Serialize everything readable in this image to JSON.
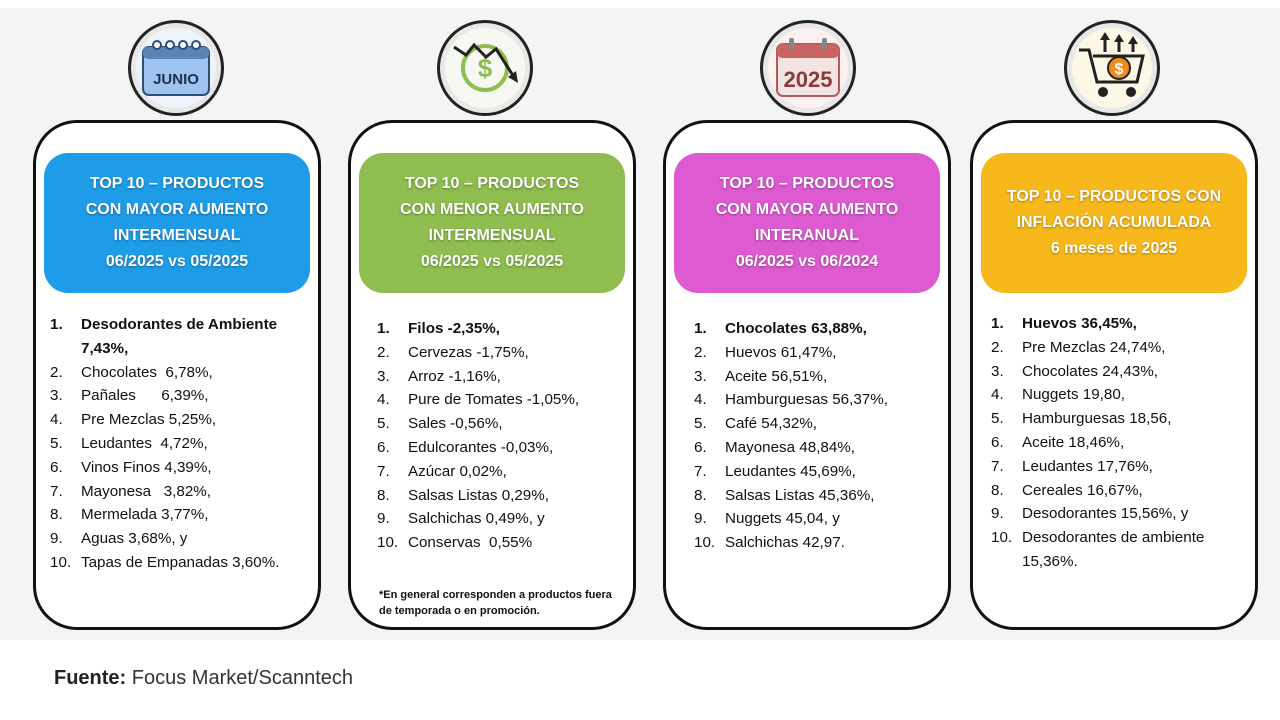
{
  "source": {
    "label": "Fuente:",
    "text": "Focus Market/Scanntech"
  },
  "cards": [
    {
      "icon_text": "JUNIO",
      "header": [
        "TOP 10 – PRODUCTOS",
        "CON MAYOR AUMENTO",
        "INTERMENSUAL",
        "06/2025 vs  05/2025"
      ],
      "color": "#1e9ce8",
      "items": [
        {
          "n": "1.",
          "t": "Desodorantes de Ambiente 7,43%,"
        },
        {
          "n": "2.",
          "t": "Chocolates  6,78%,"
        },
        {
          "n": "3.",
          "t": "Pañales      6,39%,"
        },
        {
          "n": "4.",
          "t": "Pre Mezclas 5,25%,"
        },
        {
          "n": "5.",
          "t": "Leudantes  4,72%,"
        },
        {
          "n": "6.",
          "t": "Vinos Finos 4,39%,"
        },
        {
          "n": "7.",
          "t": "Mayonesa   3,82%,"
        },
        {
          "n": "8.",
          "t": "Mermelada 3,77%,"
        },
        {
          "n": "9.",
          "t": "Aguas 3,68%, y"
        },
        {
          "n": "10.",
          "t": "Tapas de Empanadas 3,60%."
        }
      ]
    },
    {
      "header": [
        "TOP 10 – PRODUCTOS",
        "CON MENOR AUMENTO",
        "INTERMENSUAL",
        "06/2025 vs  05/2025"
      ],
      "color": "#8fbd4f",
      "items": [
        {
          "n": "1.",
          "t": "Filos -2,35%,"
        },
        {
          "n": "2.",
          "t": "Cervezas -1,75%,"
        },
        {
          "n": "3.",
          "t": "Arroz -1,16%,"
        },
        {
          "n": "4.",
          "t": "Pure de Tomates -1,05%,"
        },
        {
          "n": "5.",
          "t": "Sales -0,56%,"
        },
        {
          "n": "6.",
          "t": "Edulcorantes -0,03%,"
        },
        {
          "n": "7.",
          "t": "Azúcar 0,02%,"
        },
        {
          "n": "8.",
          "t": "Salsas Listas 0,29%,"
        },
        {
          "n": "9.",
          "t": "Salchichas 0,49%, y"
        },
        {
          "n": "10.",
          "t": "Conservas  0,55%"
        }
      ],
      "note": "*En general corresponden a productos fuera de temporada o en promoción."
    },
    {
      "icon_text": "2025",
      "header": [
        "TOP 10 – PRODUCTOS",
        "CON MAYOR AUMENTO",
        "INTERANUAL",
        "06/2025 vs  06/2024"
      ],
      "color": "#dd5ad1",
      "items": [
        {
          "n": "1.",
          "t": "Chocolates 63,88%,"
        },
        {
          "n": "2.",
          "t": "Huevos 61,47%,"
        },
        {
          "n": "3.",
          "t": "Aceite 56,51%,"
        },
        {
          "n": "4.",
          "t": "Hamburguesas 56,37%,"
        },
        {
          "n": "5.",
          "t": "Café 54,32%,"
        },
        {
          "n": "6.",
          "t": "Mayonesa 48,84%,"
        },
        {
          "n": "7.",
          "t": "Leudantes 45,69%,"
        },
        {
          "n": "8.",
          "t": "Salsas Listas 45,36%,"
        },
        {
          "n": "9.",
          "t": "Nuggets 45,04, y"
        },
        {
          "n": "10.",
          "t": "Salchichas 42,97."
        }
      ]
    },
    {
      "header": [
        "TOP 10 – PRODUCTOS CON",
        "INFLACIÓN ACUMULADA",
        "6 meses de 2025"
      ],
      "color": "#f7b81b",
      "items": [
        {
          "n": "1.",
          "t": "Huevos 36,45%,"
        },
        {
          "n": "2.",
          "t": "Pre Mezclas 24,74%,"
        },
        {
          "n": "3.",
          "t": "Chocolates 24,43%,"
        },
        {
          "n": "4.",
          "t": "Nuggets 19,80,"
        },
        {
          "n": "5.",
          "t": "Hamburguesas 18,56,"
        },
        {
          "n": "6.",
          "t": "Aceite 18,46%,"
        },
        {
          "n": "7.",
          "t": "Leudantes 17,76%,"
        },
        {
          "n": "8.",
          "t": "Cereales 16,67%,"
        },
        {
          "n": "9.",
          "t": "Desodorantes 15,56%, y"
        },
        {
          "n": "10.",
          "t": "Desodorantes de ambiente 15,36%."
        }
      ]
    }
  ]
}
